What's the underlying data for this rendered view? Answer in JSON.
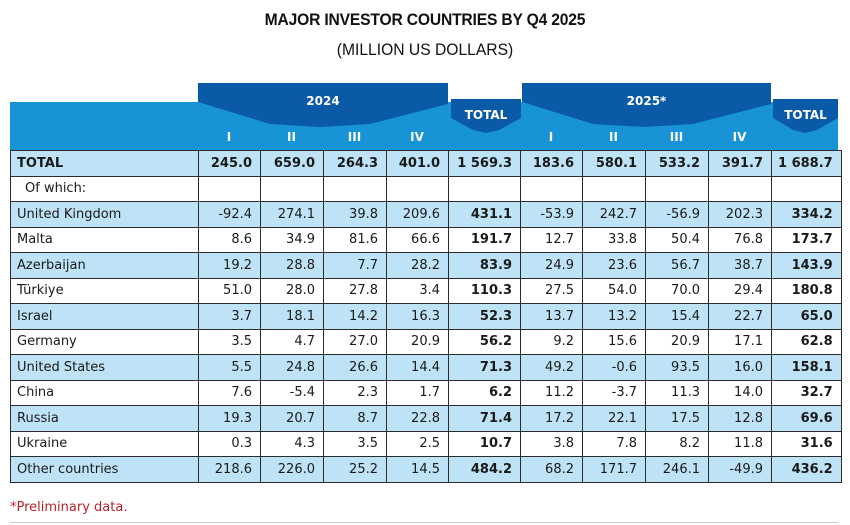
{
  "title": "MAJOR INVESTOR COUNTRIES BY Q4 2025",
  "subtitle": "(MILLION US DOLLARS)",
  "colors": {
    "header_dark": "#0b5aa8",
    "header_light": "#1893d6",
    "row_shade": "#bfe3f6",
    "footnote": "#b4232c"
  },
  "header": {
    "year_2024": "2024",
    "year_2025": "2025*",
    "total_2024": "TOTAL",
    "total_2025": "TOTAL",
    "quarters_2024": [
      "I",
      "II",
      "III",
      "IV"
    ],
    "quarters_2025": [
      "I",
      "II",
      "III",
      "IV"
    ]
  },
  "rows": [
    {
      "label": "TOTAL",
      "v2024": [
        "245.0",
        "659.0",
        "264.3",
        "401.0"
      ],
      "t2024": "1 569.3",
      "v2025": [
        "183.6",
        "580.1",
        "533.2",
        "391.7"
      ],
      "t2025": "1 688.7"
    },
    {
      "label": "Of which:",
      "v2024": [
        "",
        "",
        "",
        ""
      ],
      "t2024": "",
      "v2025": [
        "",
        "",
        "",
        ""
      ],
      "t2025": ""
    },
    {
      "label": "United Kingdom",
      "v2024": [
        "-92.4",
        "274.1",
        "39.8",
        "209.6"
      ],
      "t2024": "431.1",
      "v2025": [
        "-53.9",
        "242.7",
        "-56.9",
        "202.3"
      ],
      "t2025": "334.2"
    },
    {
      "label": "Malta",
      "v2024": [
        "8.6",
        "34.9",
        "81.6",
        "66.6"
      ],
      "t2024": "191.7",
      "v2025": [
        "12.7",
        "33.8",
        "50.4",
        "76.8"
      ],
      "t2025": "173.7"
    },
    {
      "label": "Azerbaijan",
      "v2024": [
        "19.2",
        "28.8",
        "7.7",
        "28.2"
      ],
      "t2024": "83.9",
      "v2025": [
        "24.9",
        "23.6",
        "56.7",
        "38.7"
      ],
      "t2025": "143.9"
    },
    {
      "label": "Türkiye",
      "v2024": [
        "51.0",
        "28.0",
        "27.8",
        "3.4"
      ],
      "t2024": "110.3",
      "v2025": [
        "27.5",
        "54.0",
        "70.0",
        "29.4"
      ],
      "t2025": "180.8"
    },
    {
      "label": "Israel",
      "v2024": [
        "3.7",
        "18.1",
        "14.2",
        "16.3"
      ],
      "t2024": "52.3",
      "v2025": [
        "13.7",
        "13.2",
        "15.4",
        "22.7"
      ],
      "t2025": "65.0"
    },
    {
      "label": "Germany",
      "v2024": [
        "3.5",
        "4.7",
        "27.0",
        "20.9"
      ],
      "t2024": "56.2",
      "v2025": [
        "9.2",
        "15.6",
        "20.9",
        "17.1"
      ],
      "t2025": "62.8"
    },
    {
      "label": "United States",
      "v2024": [
        "5.5",
        "24.8",
        "26.6",
        "14.4"
      ],
      "t2024": "71.3",
      "v2025": [
        "49.2",
        "-0.6",
        "93.5",
        "16.0"
      ],
      "t2025": "158.1"
    },
    {
      "label": "China",
      "v2024": [
        "7.6",
        "-5.4",
        "2.3",
        "1.7"
      ],
      "t2024": "6.2",
      "v2025": [
        "11.2",
        "-3.7",
        "11.3",
        "14.0"
      ],
      "t2025": "32.7"
    },
    {
      "label": "Russia",
      "v2024": [
        "19.3",
        "20.7",
        "8.7",
        "22.8"
      ],
      "t2024": "71.4",
      "v2025": [
        "17.2",
        "22.1",
        "17.5",
        "12.8"
      ],
      "t2025": "69.6"
    },
    {
      "label": "Ukraine",
      "v2024": [
        "0.3",
        "4.3",
        "3.5",
        "2.5"
      ],
      "t2024": "10.7",
      "v2025": [
        "3.8",
        "7.8",
        "8.2",
        "11.8"
      ],
      "t2025": "31.6"
    },
    {
      "label": "Other countries",
      "v2024": [
        "218.6",
        "226.0",
        "25.2",
        "14.5"
      ],
      "t2024": "484.2",
      "v2025": [
        "68.2",
        "171.7",
        "246.1",
        "-49.9"
      ],
      "t2025": "436.2"
    }
  ],
  "footnote": "*Preliminary data."
}
